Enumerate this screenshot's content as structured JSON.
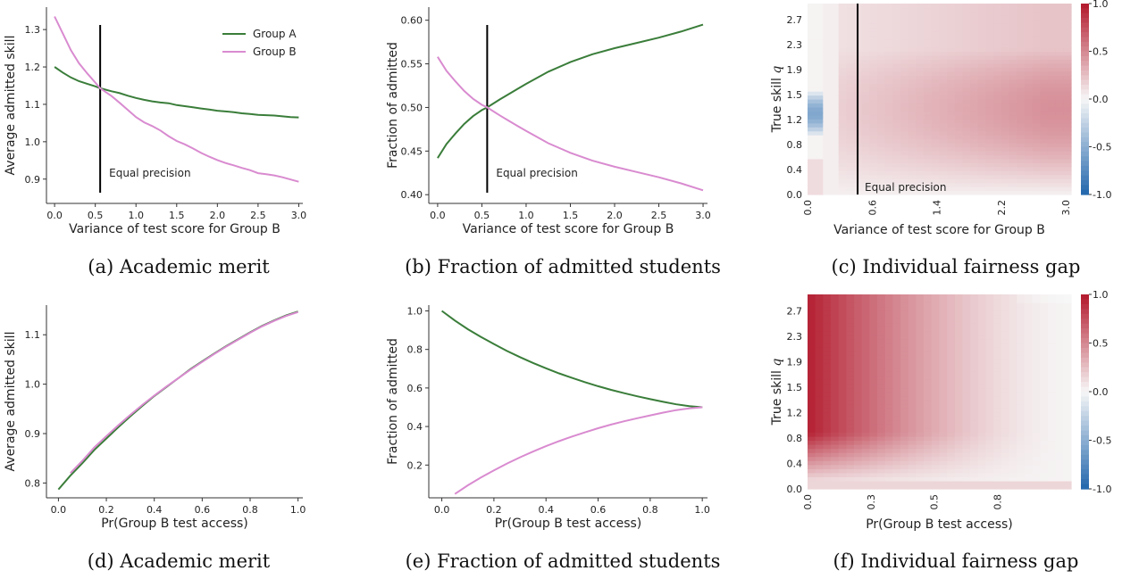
{
  "captions": {
    "a": "(a) Academic merit",
    "b": "(b) Fraction of admitted students",
    "c": "(c) Individual fairness gap",
    "d": "(d) Academic merit",
    "e": "(e) Fraction of admitted students",
    "f": "(f) Individual fairness gap"
  },
  "colors": {
    "group_a": "#3a7d3a",
    "group_b": "#d98bd0",
    "heat_neg": "#2166ac",
    "heat_pos": "#b2182b"
  },
  "chart_data": [
    {
      "id": "a",
      "type": "line",
      "xlabel": "Variance of test score for Group B",
      "ylabel": "Average admitted skill",
      "xlim": [
        -0.1,
        3.05
      ],
      "ylim": [
        0.835,
        1.36
      ],
      "xticks": [
        "0.0",
        "0.5",
        "1.0",
        "1.5",
        "2.0",
        "2.5",
        "3.0"
      ],
      "yticks": [
        "0.9",
        "1.0",
        "1.1",
        "1.2",
        "1.3"
      ],
      "legend": "top-right",
      "vline": {
        "x": 0.56,
        "label": "Equal precision"
      },
      "x": [
        0.0,
        0.1,
        0.2,
        0.3,
        0.4,
        0.5,
        0.56,
        0.7,
        0.8,
        0.9,
        1.0,
        1.1,
        1.2,
        1.3,
        1.4,
        1.5,
        1.6,
        1.7,
        1.8,
        1.9,
        2.0,
        2.1,
        2.2,
        2.3,
        2.4,
        2.5,
        2.6,
        2.7,
        2.8,
        2.9,
        3.0
      ],
      "series": [
        {
          "name": "Group A",
          "values": [
            1.2,
            1.185,
            1.172,
            1.162,
            1.155,
            1.148,
            1.143,
            1.135,
            1.13,
            1.123,
            1.117,
            1.112,
            1.108,
            1.105,
            1.103,
            1.098,
            1.095,
            1.092,
            1.089,
            1.086,
            1.083,
            1.081,
            1.079,
            1.076,
            1.074,
            1.072,
            1.071,
            1.07,
            1.068,
            1.066,
            1.065
          ]
        },
        {
          "name": "Group B",
          "values": [
            1.335,
            1.29,
            1.245,
            1.21,
            1.183,
            1.158,
            1.143,
            1.122,
            1.104,
            1.085,
            1.066,
            1.052,
            1.042,
            1.03,
            1.015,
            1.002,
            0.993,
            0.982,
            0.97,
            0.96,
            0.951,
            0.943,
            0.937,
            0.93,
            0.924,
            0.916,
            0.913,
            0.91,
            0.905,
            0.899,
            0.893
          ]
        }
      ]
    },
    {
      "id": "b",
      "type": "line",
      "xlabel": "Variance of test score for Group B",
      "ylabel": "Fraction of admitted",
      "xlim": [
        -0.1,
        3.05
      ],
      "ylim": [
        0.39,
        0.615
      ],
      "xticks": [
        "0.0",
        "0.5",
        "1.0",
        "1.5",
        "2.0",
        "2.5",
        "3.0"
      ],
      "yticks": [
        "0.40",
        "0.45",
        "0.50",
        "0.55",
        "0.60"
      ],
      "vline": {
        "x": 0.56,
        "label": "Equal precision"
      },
      "x": [
        0.0,
        0.1,
        0.2,
        0.3,
        0.4,
        0.5,
        0.56,
        0.7,
        0.8,
        0.9,
        1.0,
        1.25,
        1.5,
        1.75,
        2.0,
        2.25,
        2.5,
        2.75,
        3.0
      ],
      "series": [
        {
          "name": "Group A",
          "values": [
            0.442,
            0.458,
            0.47,
            0.481,
            0.49,
            0.497,
            0.5,
            0.509,
            0.515,
            0.521,
            0.527,
            0.541,
            0.552,
            0.561,
            0.568,
            0.574,
            0.58,
            0.587,
            0.595
          ]
        },
        {
          "name": "Group B",
          "values": [
            0.558,
            0.542,
            0.53,
            0.519,
            0.51,
            0.503,
            0.5,
            0.491,
            0.485,
            0.479,
            0.473,
            0.459,
            0.448,
            0.439,
            0.432,
            0.426,
            0.42,
            0.413,
            0.405
          ]
        }
      ]
    },
    {
      "id": "c",
      "type": "heatmap",
      "xlabel": "Variance of test score for Group B",
      "ylabel": "True skill q",
      "xticks": [
        "0.0",
        "0.6",
        "1.4",
        "2.2",
        "3.0"
      ],
      "yticks": [
        "0.0",
        "0.4",
        "0.8",
        "1.2",
        "1.5",
        "1.9",
        "2.3",
        "2.7"
      ],
      "colorbar": {
        "min": -1.0,
        "max": 1.0,
        "ticks": [
          "1.0",
          "0.5",
          "0.0",
          "-0.5",
          "-1.0"
        ]
      },
      "vline": {
        "x": 0.56,
        "label": "Equal precision"
      },
      "variant": "variance"
    },
    {
      "id": "d",
      "type": "line",
      "xlabel": "Pr(Group B test access)",
      "ylabel": "Average admitted skill",
      "xlim": [
        -0.05,
        1.02
      ],
      "ylim": [
        0.77,
        1.16
      ],
      "xticks": [
        "0.0",
        "0.2",
        "0.4",
        "0.6",
        "0.8",
        "1.0"
      ],
      "yticks": [
        "0.8",
        "0.9",
        "1.0",
        "1.1"
      ],
      "x": [
        0.0,
        0.05,
        0.1,
        0.15,
        0.2,
        0.25,
        0.3,
        0.35,
        0.4,
        0.45,
        0.5,
        0.55,
        0.6,
        0.65,
        0.7,
        0.75,
        0.8,
        0.85,
        0.9,
        0.95,
        1.0
      ],
      "series": [
        {
          "name": "Group A",
          "values": [
            0.787,
            0.815,
            0.84,
            0.867,
            0.89,
            0.913,
            0.935,
            0.956,
            0.976,
            0.994,
            1.012,
            1.03,
            1.046,
            1.062,
            1.077,
            1.091,
            1.105,
            1.118,
            1.129,
            1.139,
            1.147
          ]
        },
        {
          "name": "Group B",
          "values": [
            null,
            0.82,
            0.845,
            0.872,
            0.895,
            0.917,
            0.938,
            0.958,
            0.977,
            0.995,
            1.012,
            1.029,
            1.045,
            1.061,
            1.076,
            1.09,
            1.104,
            1.117,
            1.128,
            1.138,
            1.146
          ]
        }
      ]
    },
    {
      "id": "e",
      "type": "line",
      "xlabel": "Pr(Group B test access)",
      "ylabel": "Fraction of admitted",
      "xlim": [
        -0.05,
        1.02
      ],
      "ylim": [
        0.03,
        1.03
      ],
      "xticks": [
        "0.0",
        "0.2",
        "0.4",
        "0.6",
        "0.8",
        "1.0"
      ],
      "yticks": [
        "0.2",
        "0.4",
        "0.6",
        "0.8",
        "1.0"
      ],
      "x": [
        0.0,
        0.05,
        0.1,
        0.15,
        0.2,
        0.25,
        0.3,
        0.35,
        0.4,
        0.45,
        0.5,
        0.55,
        0.6,
        0.65,
        0.7,
        0.75,
        0.8,
        0.85,
        0.9,
        0.95,
        1.0
      ],
      "series": [
        {
          "name": "Group A",
          "values": [
            1.0,
            0.95,
            0.905,
            0.865,
            0.828,
            0.792,
            0.76,
            0.73,
            0.702,
            0.676,
            0.652,
            0.63,
            0.609,
            0.59,
            0.573,
            0.557,
            0.542,
            0.528,
            0.515,
            0.506,
            0.5
          ]
        },
        {
          "name": "Group B",
          "values": [
            null,
            0.05,
            0.095,
            0.135,
            0.172,
            0.208,
            0.24,
            0.27,
            0.298,
            0.324,
            0.348,
            0.37,
            0.391,
            0.41,
            0.427,
            0.443,
            0.458,
            0.472,
            0.485,
            0.494,
            0.5
          ]
        }
      ]
    },
    {
      "id": "f",
      "type": "heatmap",
      "xlabel": "Pr(Group B test access)",
      "ylabel": "True skill q",
      "xticks": [
        "0.0",
        "0.3",
        "0.5",
        "0.8"
      ],
      "yticks": [
        "0.0",
        "0.4",
        "0.8",
        "1.2",
        "1.5",
        "1.9",
        "2.3",
        "2.7"
      ],
      "colorbar": {
        "min": -1.0,
        "max": 1.0,
        "ticks": [
          "1.0",
          "0.5",
          "0.0",
          "-0.5",
          "-1.0"
        ]
      },
      "variant": "access"
    }
  ]
}
